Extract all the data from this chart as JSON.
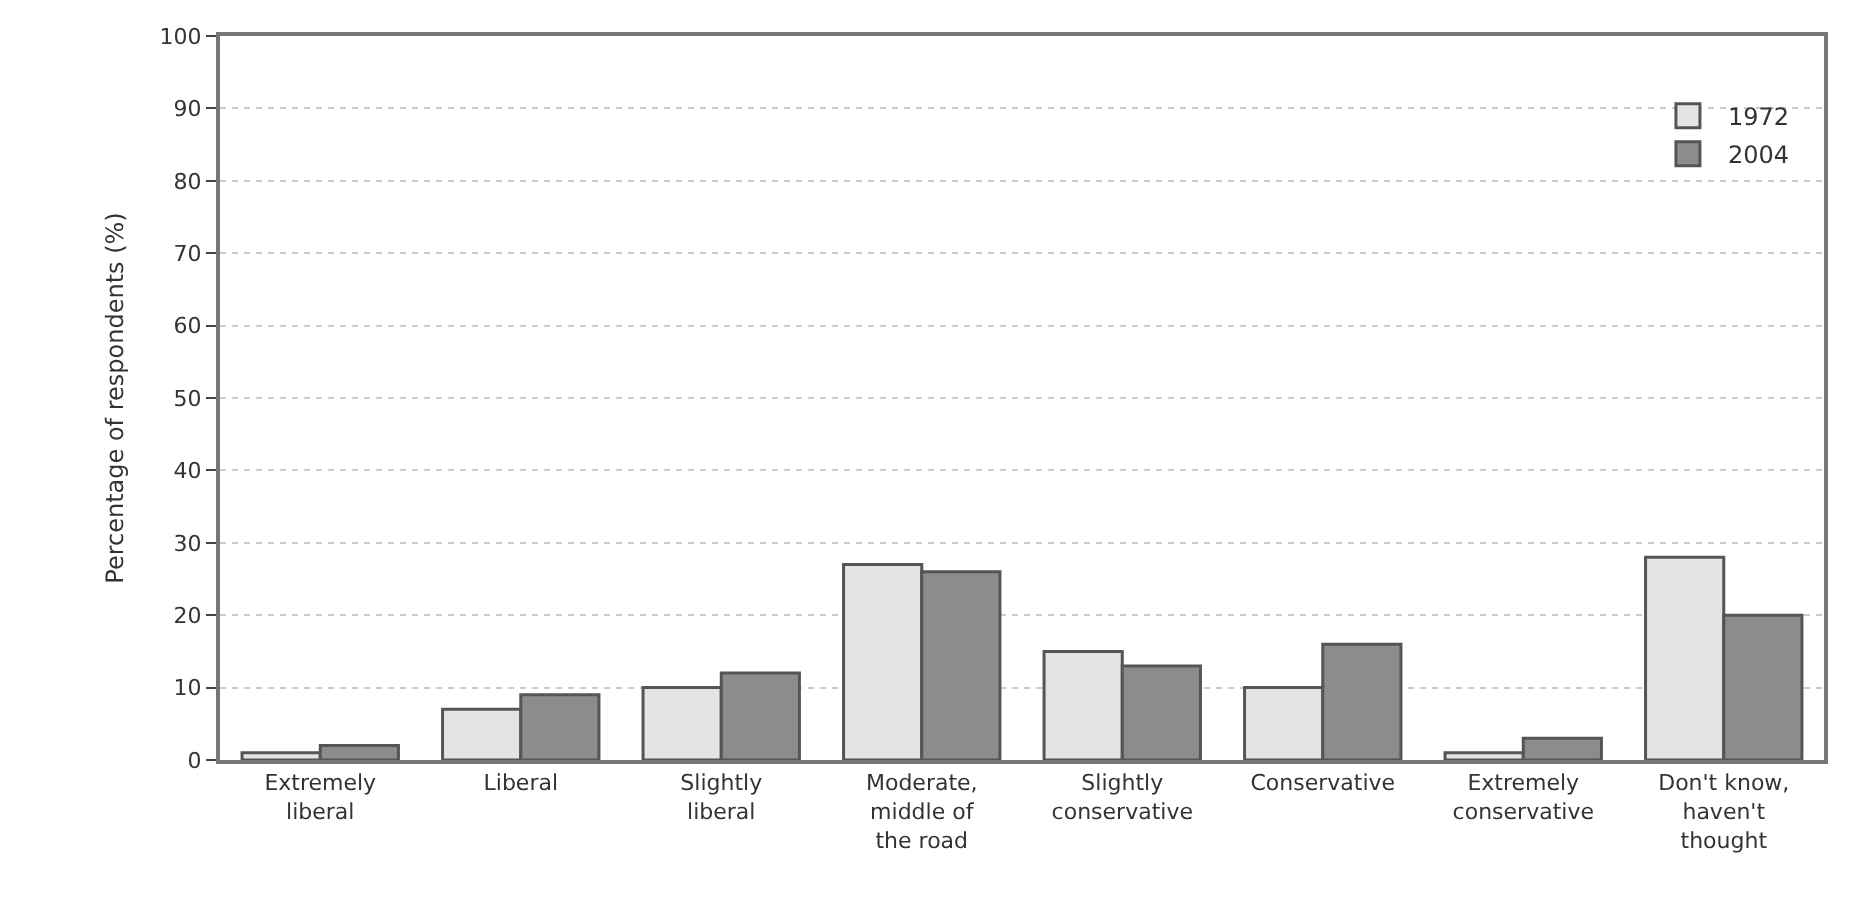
{
  "chart_data": {
    "type": "bar",
    "ylabel": "Percentage of respondents (%)",
    "categories": [
      "Extremely\nliberal",
      "Liberal",
      "Slightly\nliberal",
      "Moderate,\nmiddle of\nthe road",
      "Slightly\nconservative",
      "Conservative",
      "Extremely\nconservative",
      "Don't know,\nhaven't\nthought"
    ],
    "series": [
      {
        "name": "1972",
        "color": "#e4e4e4",
        "values": [
          1,
          7,
          10,
          27,
          15,
          10,
          1,
          28
        ]
      },
      {
        "name": "2004",
        "color": "#8c8c8c",
        "values": [
          2,
          9,
          12,
          26,
          13,
          16,
          3,
          20
        ]
      }
    ],
    "ylim": [
      0,
      100
    ],
    "yticks": [
      0,
      10,
      20,
      30,
      40,
      50,
      60,
      70,
      80,
      90,
      100
    ],
    "grid": "y",
    "legend": "top right"
  }
}
